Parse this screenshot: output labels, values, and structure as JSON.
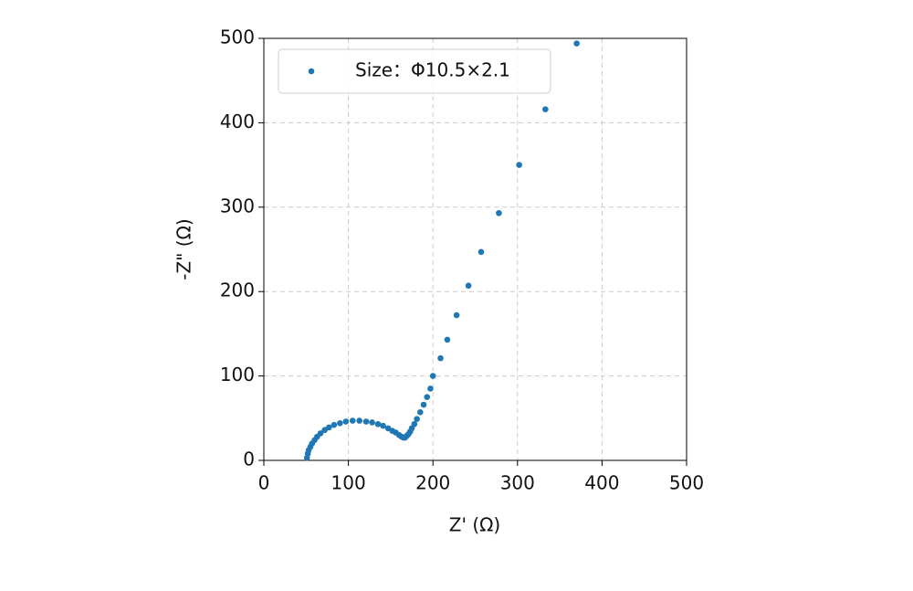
{
  "chart_data": {
    "type": "scatter",
    "x_label": "Z' (Ω)",
    "y_label": "-Z\" (Ω)",
    "legend": "upper left",
    "grid": true,
    "xlim": [
      0,
      500
    ],
    "ylim": [
      0,
      500
    ],
    "xticks": [
      0,
      100,
      200,
      300,
      400,
      500
    ],
    "yticks": [
      0,
      100,
      200,
      300,
      400,
      500
    ],
    "series": [
      {
        "name": "Size：Φ10.5×2.1",
        "color": "#1f77b4",
        "x": [
          51,
          52,
          53,
          55,
          57,
          60,
          63,
          67,
          72,
          77,
          83,
          90,
          97,
          105,
          113,
          121,
          128,
          135,
          141,
          147,
          152,
          156,
          160,
          163,
          165,
          167,
          169,
          171,
          173,
          175,
          178,
          181,
          185,
          189,
          193,
          197,
          200,
          209,
          217,
          228,
          242,
          257,
          278,
          302,
          333,
          370
        ],
        "values": [
          3,
          8,
          12,
          16,
          20,
          24,
          28,
          32,
          36,
          39,
          42,
          44,
          46,
          47,
          47,
          46,
          45,
          43,
          41,
          38,
          35,
          33,
          30,
          28,
          27,
          27,
          29,
          31,
          34,
          38,
          43,
          49,
          57,
          66,
          75,
          85,
          100,
          121,
          143,
          172,
          207,
          247,
          293,
          350,
          416,
          494
        ]
      }
    ]
  }
}
